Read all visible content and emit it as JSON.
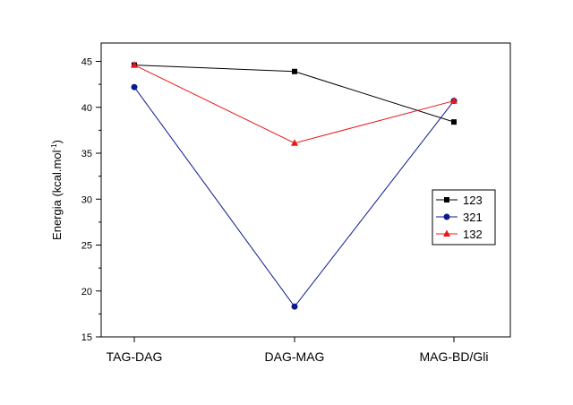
{
  "chart_data": {
    "type": "line",
    "categories": [
      "TAG-DAG",
      "DAG-MAG",
      "MAG-BD/Gli"
    ],
    "series": [
      {
        "name": "123",
        "values": [
          44.6,
          43.9,
          38.4
        ],
        "color": "#000000",
        "marker": "square"
      },
      {
        "name": "321",
        "values": [
          42.2,
          18.3,
          40.7
        ],
        "color": "#0b1a8c",
        "marker": "circle"
      },
      {
        "name": "132",
        "values": [
          44.6,
          36.1,
          40.7
        ],
        "color": "#e8191b",
        "marker": "triangle"
      }
    ],
    "title": "",
    "xlabel": "",
    "ylabel": "Energia (kcal.mol",
    "ylabel_sup": "-1",
    "ylabel_close": ")",
    "ylim": [
      15,
      47
    ],
    "yticks": [
      15,
      20,
      25,
      30,
      35,
      40,
      45
    ],
    "grid": false,
    "legend_position": "right"
  }
}
